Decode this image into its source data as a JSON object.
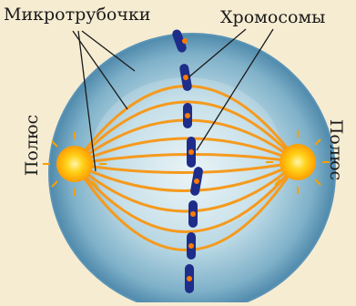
{
  "labels": {
    "microtubules": "Микротрубочки",
    "chromosomes": "Хромосомы",
    "pole_left": "Полюс",
    "pole_right": "Полюс"
  },
  "colors": {
    "background": "#f6ecd2",
    "cell_outer": "#5a94b6",
    "cell_inner": "#dcecf1",
    "spindle": "#f59a1e",
    "chromosome": "#1e2d8a",
    "pole": "#ffd21a"
  }
}
